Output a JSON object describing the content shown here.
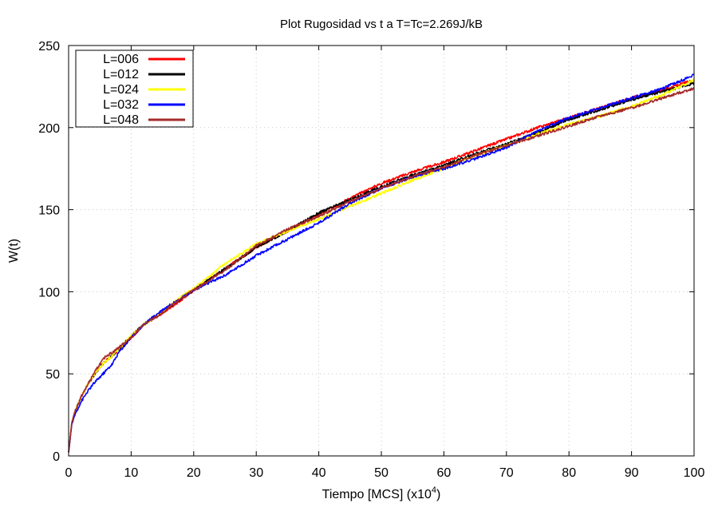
{
  "chart_data": {
    "type": "line",
    "title": "Plot Rugosidad vs t a T=Tc=2.269J/kB",
    "xlabel": "Tiempo [MCS] (x10",
    "xlabel_sup": "4",
    "xlabel_suffix": ")",
    "ylabel": "W(t)",
    "xlim": [
      0,
      100
    ],
    "ylim": [
      0,
      250
    ],
    "xticks": [
      0,
      10,
      20,
      30,
      40,
      50,
      60,
      70,
      80,
      90,
      100
    ],
    "yticks": [
      0,
      50,
      100,
      150,
      200,
      250
    ],
    "grid": true,
    "legend_position": "top-left",
    "series": [
      {
        "name": "L=006",
        "color": "#ff0000",
        "x": [
          0,
          0.5,
          1,
          2,
          3,
          4,
          5,
          6,
          7,
          8,
          10,
          12,
          15,
          18,
          20,
          25,
          30,
          35,
          40,
          45,
          50,
          55,
          60,
          65,
          70,
          75,
          80,
          85,
          90,
          95,
          100
        ],
        "y": [
          2,
          20,
          27,
          36,
          43,
          49,
          54,
          58,
          61,
          65,
          72,
          80,
          87,
          95,
          101,
          114,
          127,
          137,
          147,
          157,
          166,
          173,
          179,
          186,
          193,
          200,
          206,
          212,
          218,
          223,
          229
        ]
      },
      {
        "name": "L=012",
        "color": "#000000",
        "x": [
          0,
          0.5,
          1,
          2,
          3,
          4,
          5,
          6,
          7,
          8,
          10,
          12,
          15,
          18,
          20,
          25,
          30,
          35,
          40,
          45,
          50,
          55,
          60,
          65,
          70,
          75,
          80,
          85,
          90,
          95,
          100
        ],
        "y": [
          2,
          20,
          27,
          36,
          43,
          49,
          54,
          58,
          61,
          65,
          73,
          80,
          88,
          96,
          101,
          114,
          127,
          137,
          148,
          156,
          164,
          171,
          177,
          184,
          190,
          197,
          205,
          211,
          217,
          222,
          227
        ]
      },
      {
        "name": "L=024",
        "color": "#ffff00",
        "x": [
          0,
          0.5,
          1,
          2,
          3,
          4,
          5,
          6,
          7,
          8,
          10,
          12,
          15,
          18,
          20,
          25,
          30,
          35,
          40,
          45,
          50,
          55,
          60,
          65,
          70,
          75,
          80,
          85,
          90,
          95,
          100
        ],
        "y": [
          2,
          20,
          27,
          36,
          43,
          49,
          54,
          58,
          61,
          65,
          73,
          80,
          88,
          97,
          102,
          117,
          129,
          137,
          144,
          152,
          160,
          168,
          175,
          183,
          189,
          196,
          202,
          207,
          213,
          220,
          229
        ]
      },
      {
        "name": "L=032",
        "color": "#0000ff",
        "x": [
          0,
          0.5,
          1,
          2,
          3,
          4,
          5,
          6,
          7,
          8,
          10,
          12,
          15,
          18,
          20,
          25,
          30,
          35,
          40,
          45,
          50,
          55,
          60,
          65,
          70,
          75,
          80,
          85,
          90,
          95,
          100
        ],
        "y": [
          2,
          19,
          25,
          33,
          39,
          44,
          48,
          52,
          56,
          63,
          72,
          80,
          89,
          96,
          101,
          110,
          122,
          132,
          142,
          154,
          163,
          170,
          175,
          181,
          188,
          198,
          206,
          212,
          218,
          224,
          232
        ]
      },
      {
        "name": "L=048",
        "color": "#a52a2a",
        "x": [
          0,
          0.5,
          1,
          2,
          3,
          4,
          5,
          6,
          7,
          8,
          10,
          12,
          15,
          18,
          20,
          25,
          30,
          35,
          40,
          45,
          50,
          55,
          60,
          65,
          70,
          75,
          80,
          85,
          90,
          95,
          100
        ],
        "y": [
          2,
          20,
          27,
          36,
          43,
          50,
          56,
          61,
          63,
          66,
          72,
          80,
          87,
          96,
          101,
          113,
          128,
          138,
          146,
          155,
          163,
          170,
          176,
          183,
          189,
          195,
          201,
          207,
          212,
          218,
          224
        ]
      }
    ]
  }
}
